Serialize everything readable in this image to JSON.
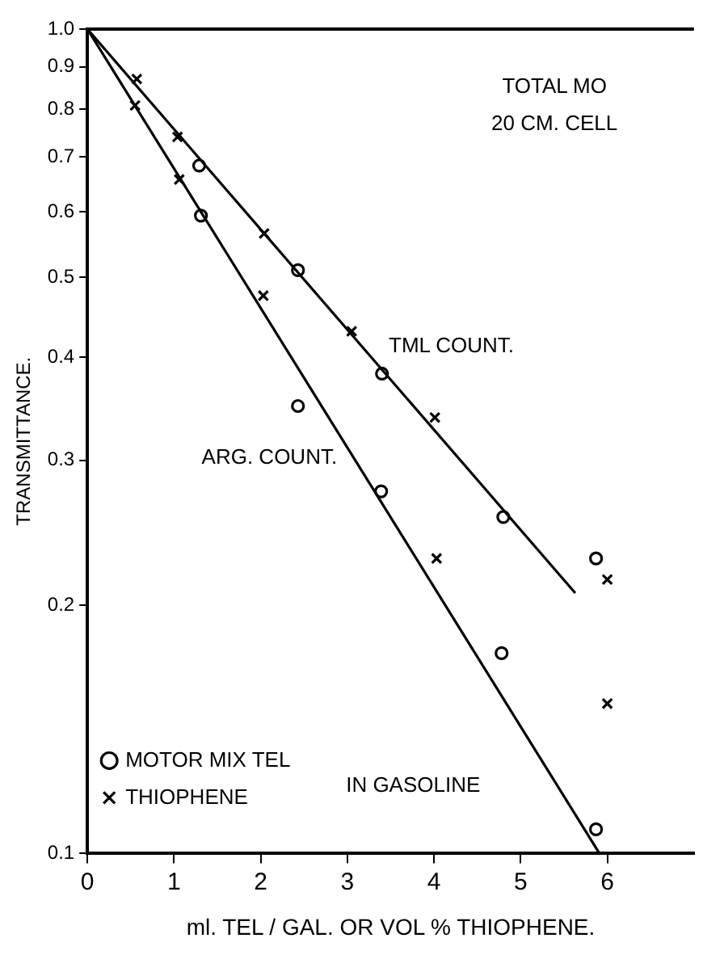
{
  "chart_data": {
    "type": "scatter",
    "xlabel": "ml. TEL / GAL. OR VOL % THIOPHENE.",
    "ylabel": "TRANSMITTANCE.",
    "legend_title": "IN GASOLINE",
    "annotations": [
      "TOTAL MO",
      "20 CM. CELL",
      "TML COUNT.",
      "ARG. COUNT."
    ],
    "series": [
      {
        "name": "MOTOR MIX TEL",
        "marker": "circle",
        "color": "#000000",
        "x": [
          1.29,
          1.31,
          2.43,
          2.43,
          3.4,
          3.39,
          4.8,
          4.78,
          5.87,
          5.87
        ],
        "values": [
          0.683,
          0.594,
          0.51,
          0.349,
          0.382,
          0.275,
          0.256,
          0.175,
          0.228,
          0.107
        ]
      },
      {
        "name": "THIOPHENE",
        "marker": "cross",
        "color": "#000000",
        "x": [
          0.57,
          0.55,
          1.04,
          1.06,
          2.04,
          2.03,
          3.05,
          4.01,
          4.03,
          6.0,
          6.0
        ],
        "values": [
          0.87,
          0.808,
          0.74,
          0.657,
          0.565,
          0.475,
          0.43,
          0.338,
          0.228,
          0.215,
          0.152
        ]
      },
      {
        "type": "line",
        "marker": "none",
        "color": "#000000",
        "x": [
          0,
          5.63
        ],
        "values": [
          1.0,
          0.207
        ]
      },
      {
        "type": "line",
        "marker": "none",
        "color": "#000000",
        "x": [
          0,
          5.91
        ],
        "values": [
          1.0,
          0.1
        ]
      }
    ],
    "log": "y",
    "grid": false,
    "legend": "bottom left",
    "xlim": [
      0,
      7
    ],
    "xticks": [
      0,
      1,
      2,
      3,
      4,
      5,
      6
    ],
    "ylim": [
      0.1,
      1
    ],
    "yticks": [
      0.1,
      0.2,
      0.3,
      0.4,
      0.5,
      0.6,
      0.7,
      0.8,
      0.9,
      {
        "value": 1,
        "label": "1.0"
      }
    ]
  }
}
